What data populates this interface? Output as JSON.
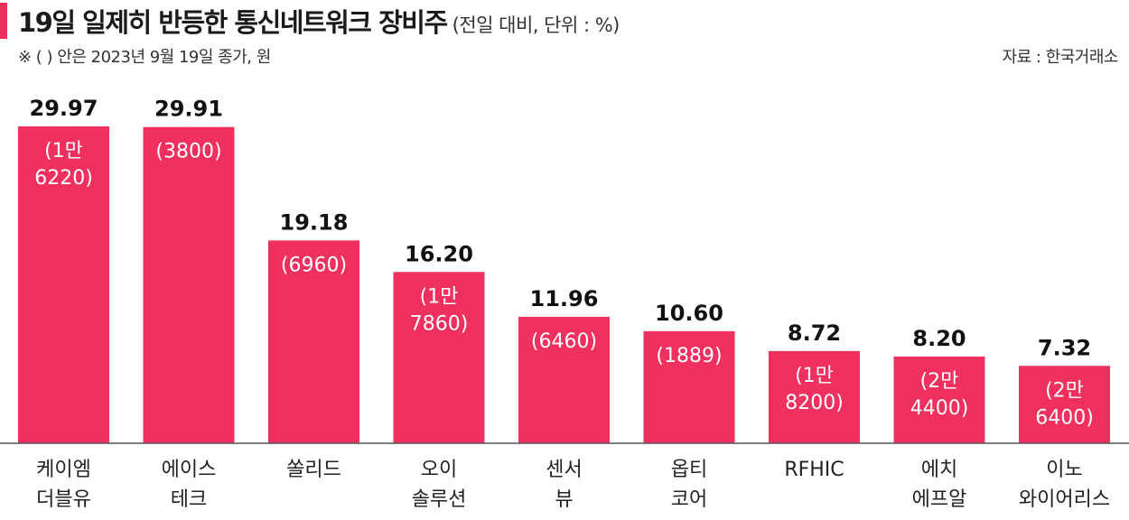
{
  "header": {
    "title": "19일 일제히 반등한 통신네트워크 장비주",
    "subtitle": "(전일 대비, 단위 : %)",
    "note": "※ (   ) 안은 2023년 9월 19일 종가, 원",
    "source": "자료 : 한국거래소"
  },
  "colors": {
    "bar": "#f0305e",
    "accent": "#e8315c",
    "text": "#111111",
    "price_text": "#ffffff"
  },
  "chart_data": {
    "type": "bar",
    "title": "19일 일제히 반등한 통신네트워크 장비주",
    "unit": "%",
    "categories": [
      [
        "케이엠",
        "더블유"
      ],
      [
        "에이스",
        "테크"
      ],
      [
        "쏠리드"
      ],
      [
        "오이",
        "솔루션"
      ],
      [
        "센서",
        "뷰"
      ],
      [
        "옵티",
        "코어"
      ],
      [
        "RFHIC"
      ],
      [
        "에치",
        "에프알"
      ],
      [
        "이노",
        "와이어리스"
      ]
    ],
    "values": [
      29.97,
      29.91,
      19.18,
      16.2,
      11.96,
      10.6,
      8.72,
      8.2,
      7.32
    ],
    "value_labels": [
      "29.97",
      "29.91",
      "19.18",
      "16.20",
      "11.96",
      "10.60",
      "8.72",
      "8.20",
      "7.32"
    ],
    "price_labels": [
      [
        "(1만",
        "6220)"
      ],
      [
        "(3800)"
      ],
      [
        "(6960)"
      ],
      [
        "(1만",
        "7860)"
      ],
      [
        "(6460)"
      ],
      [
        "(1889)"
      ],
      [
        "(1만",
        "8200)"
      ],
      [
        "(2만",
        "4400)"
      ],
      [
        "(2만",
        "6400)"
      ]
    ],
    "ylim": [
      0,
      30
    ],
    "grid": false,
    "legend": "none"
  }
}
